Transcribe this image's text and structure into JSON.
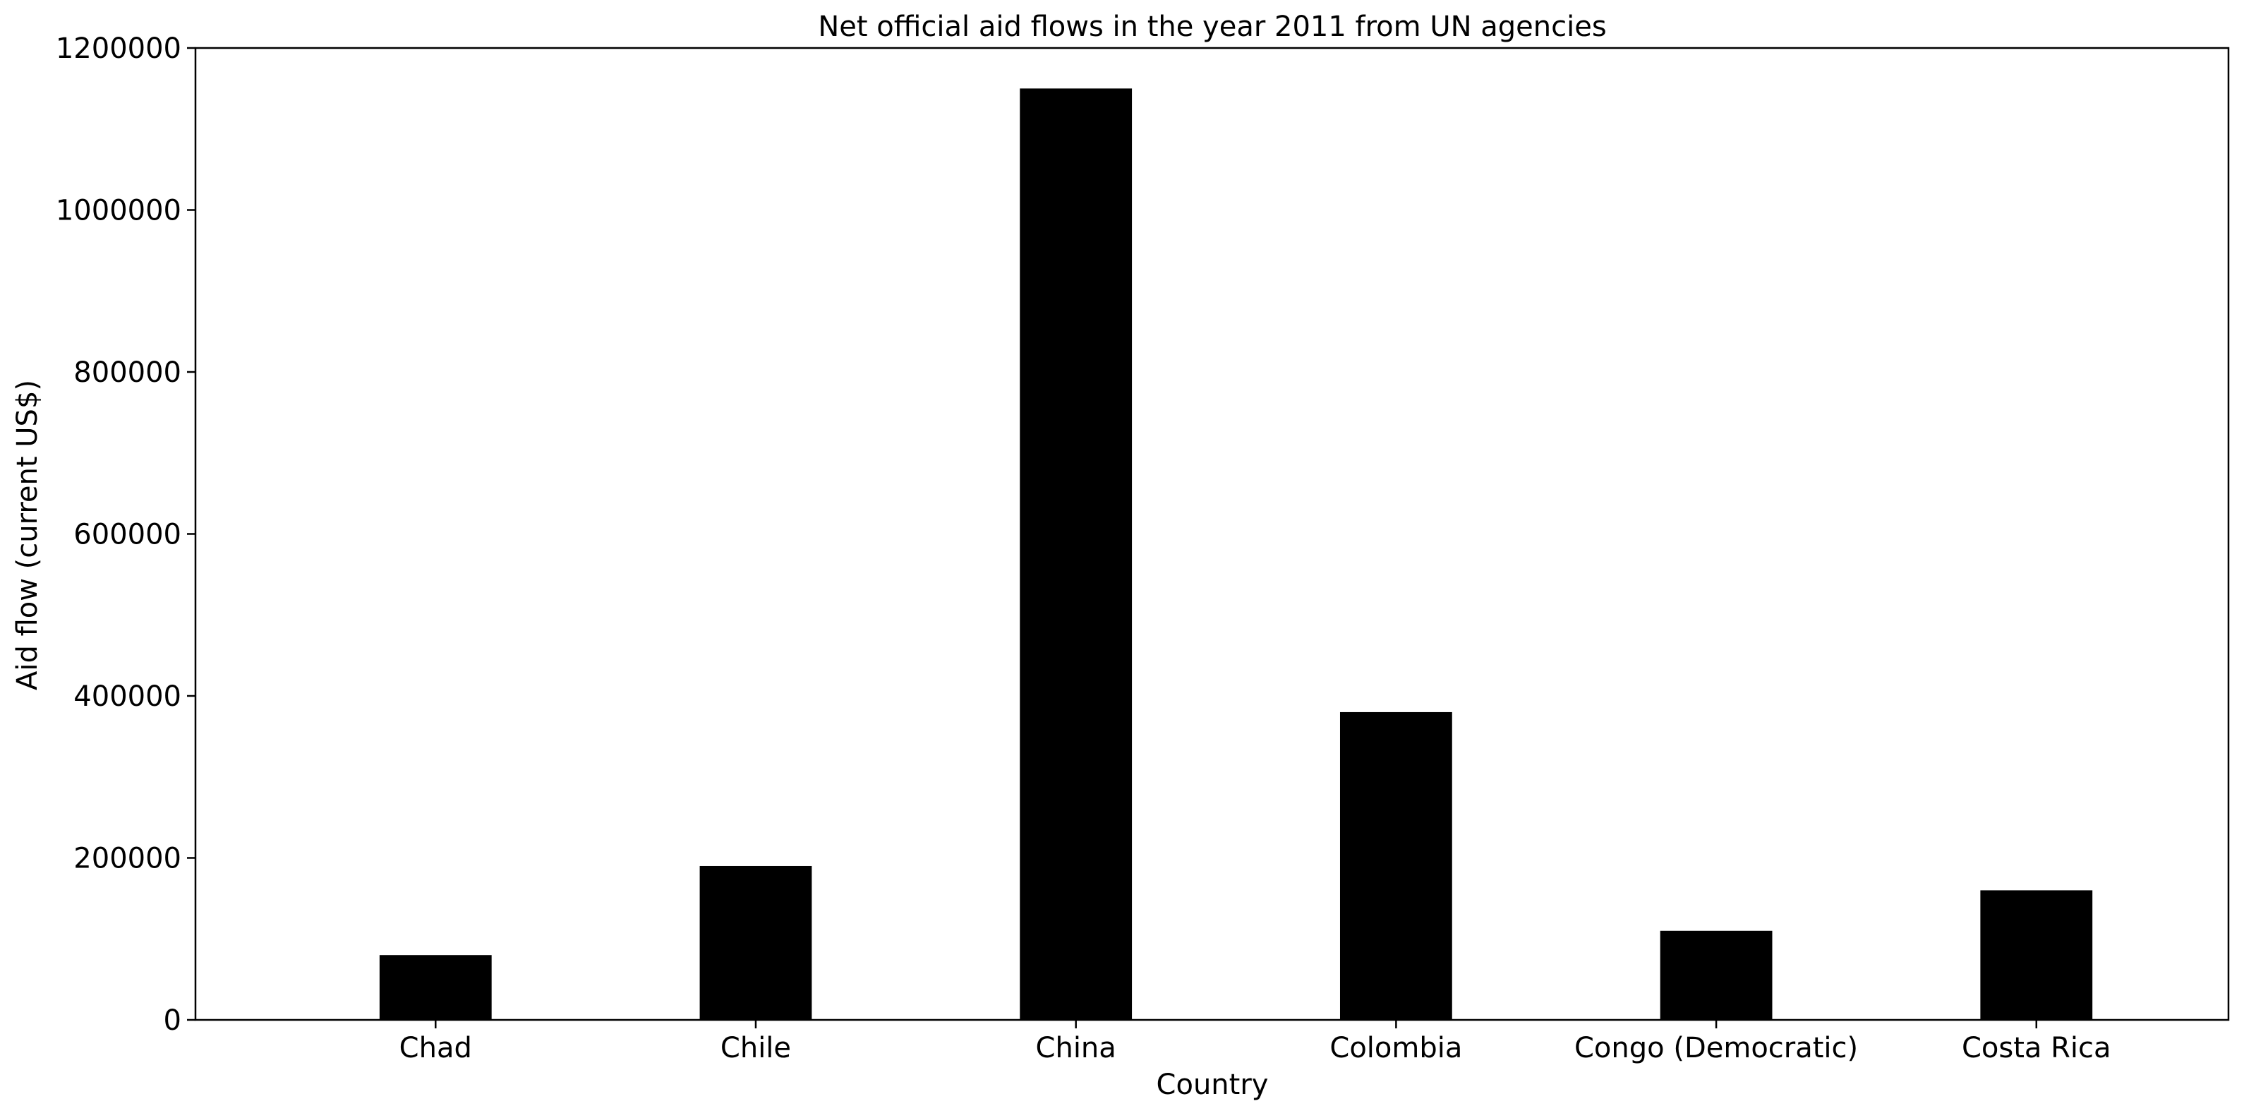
{
  "chart_data": {
    "type": "bar",
    "title": "Net official aid flows in the year 2011 from UN agencies",
    "xlabel": "Country",
    "ylabel": "Aid flow (current US$)",
    "categories": [
      "Chad",
      "Chile",
      "China",
      "Colombia",
      "Congo (Democratic)",
      "Costa Rica"
    ],
    "values": [
      80000,
      190000,
      1150000,
      380000,
      110000,
      160000
    ],
    "ylim": [
      0,
      1200000
    ],
    "yticks": [
      0,
      200000,
      400000,
      600000,
      800000,
      1000000,
      1200000
    ],
    "bar_color": "#000000",
    "grid": false,
    "legend": "none"
  }
}
